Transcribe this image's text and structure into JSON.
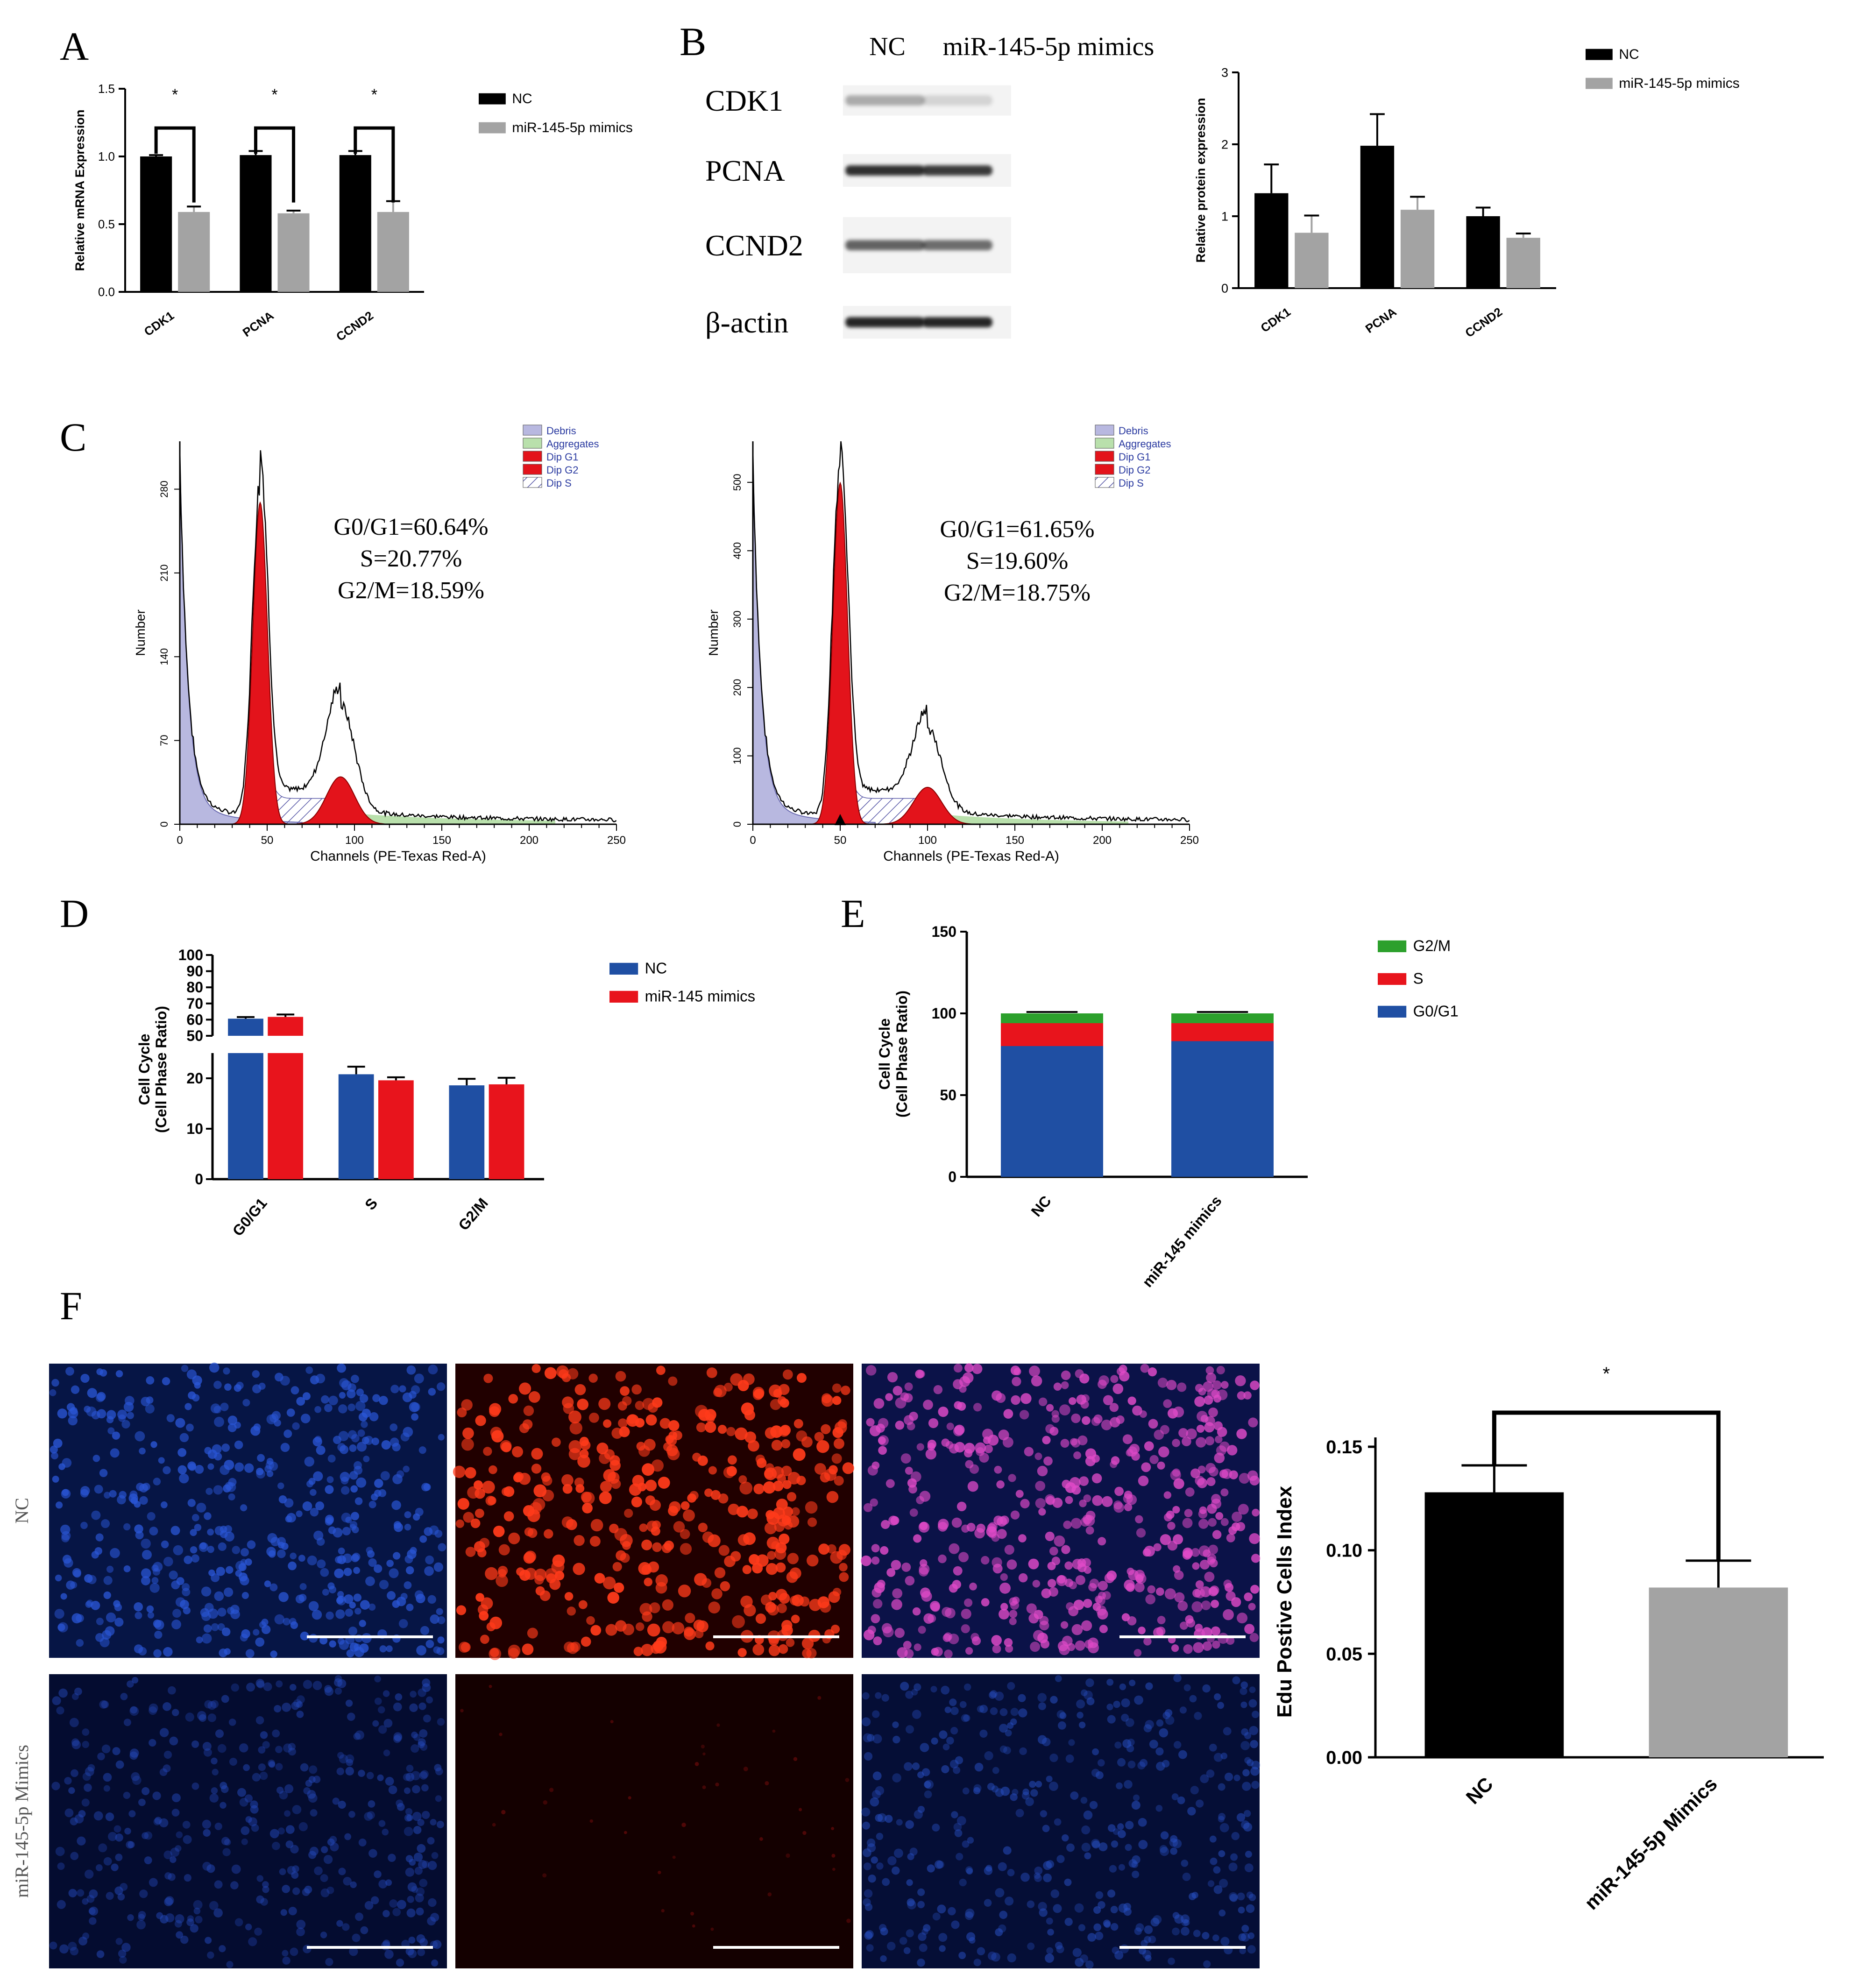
{
  "panel_labels": {
    "A": "A",
    "B": "B",
    "C": "C",
    "D": "D",
    "E": "E",
    "F": "F"
  },
  "colors": {
    "black": "#000000",
    "grey": "#a3a3a3",
    "blue": "#1f4fa3",
    "red": "#e8141c",
    "green": "#2ca02c",
    "debris": "#b8b8e0",
    "aggregates": "#b9e0ac",
    "dip": "#e3131b"
  },
  "blot": {
    "lane_labels": [
      "NC",
      "miR-145-5p mimics"
    ],
    "rows": [
      {
        "label": "CDK1",
        "intensity": [
          0.35,
          0.15
        ]
      },
      {
        "label": "PCNA",
        "intensity": [
          0.95,
          0.9
        ]
      },
      {
        "label": "CCND2",
        "intensity": [
          0.7,
          0.65
        ]
      },
      {
        "label": "β-actin",
        "intensity": [
          1.0,
          1.0
        ]
      }
    ]
  },
  "flow": [
    {
      "ylabel": "Number",
      "xlabel": "Channels (PE-Texas Red-A)",
      "yticks": [
        0,
        70,
        140,
        210,
        280
      ],
      "xticks": [
        0,
        50,
        100,
        150,
        200,
        250
      ],
      "stats": [
        "G0/G1=60.64%",
        "S=20.77%",
        "G2/M=18.59%"
      ],
      "legend": [
        "Debris",
        "Aggregates",
        "Dip G1",
        "Dip G2",
        "Dip S"
      ],
      "ymax": 320,
      "g1_peak": [
        46,
        280
      ],
      "g2_peak": [
        92,
        88
      ]
    },
    {
      "ylabel": "Number",
      "xlabel": "Channels (PE-Texas Red-A)",
      "yticks": [
        0,
        100,
        200,
        300,
        400,
        500
      ],
      "xticks": [
        0,
        50,
        100,
        150,
        200,
        250
      ],
      "stats": [
        "G0/G1=61.65%",
        "S=19.60%",
        "G2/M=18.75%"
      ],
      "legend": [
        "Debris",
        "Aggregates",
        "Dip G1",
        "Dip G2",
        "Dip S"
      ],
      "ymax": 560,
      "g1_peak": [
        50,
        520
      ],
      "g2_peak": [
        100,
        120
      ]
    }
  ],
  "micro": {
    "row_labels": [
      "NC",
      "miR-145-5p Mimics"
    ]
  },
  "chart_data": [
    {
      "panel": "A",
      "type": "bar",
      "ylabel": "Relative mRNA Expression",
      "ylim": [
        0,
        1.5
      ],
      "yticks": [
        0.0,
        0.5,
        1.0,
        1.5
      ],
      "categories": [
        "CDK1",
        "PCNA",
        "CCND2"
      ],
      "series": [
        {
          "name": "NC",
          "values": [
            1.0,
            1.01,
            1.01
          ],
          "errors": [
            0.01,
            0.03,
            0.03
          ]
        },
        {
          "name": "miR-145-5p mimics",
          "values": [
            0.59,
            0.58,
            0.59
          ],
          "errors": [
            0.04,
            0.02,
            0.08
          ]
        }
      ],
      "significance": [
        "*",
        "*",
        "*"
      ],
      "legend_position": "right"
    },
    {
      "panel": "B",
      "type": "bar",
      "ylabel": "Relative protein expression",
      "ylim": [
        0,
        3
      ],
      "yticks": [
        0,
        1,
        2,
        3
      ],
      "categories": [
        "CDK1",
        "PCNA",
        "CCND2"
      ],
      "series": [
        {
          "name": "NC",
          "values": [
            1.32,
            1.98,
            1.0
          ],
          "errors": [
            0.4,
            0.44,
            0.12
          ]
        },
        {
          "name": "miR-145-5p mimics",
          "values": [
            0.77,
            1.09,
            0.7
          ],
          "errors": [
            0.24,
            0.18,
            0.06
          ]
        }
      ],
      "legend_position": "top-right"
    },
    {
      "panel": "D",
      "type": "bar",
      "ylabel": "Cell Cycle (Cell Phase Ratio)",
      "ylim": [
        0,
        100
      ],
      "axis_break": [
        25,
        50
      ],
      "yticks": [
        0,
        10,
        20,
        50,
        60,
        70,
        80,
        90,
        100
      ],
      "categories": [
        "G0/G1",
        "S",
        "G2/M"
      ],
      "series": [
        {
          "name": "NC",
          "values": [
            60.6,
            20.8,
            18.6
          ],
          "errors": [
            1.0,
            1.5,
            1.3
          ]
        },
        {
          "name": "miR-145 mimics",
          "values": [
            61.7,
            19.6,
            18.8
          ],
          "errors": [
            1.5,
            0.6,
            1.3
          ]
        }
      ],
      "legend_position": "right"
    },
    {
      "panel": "E",
      "type": "bar",
      "stacked": true,
      "ylabel": "Cell Cycle (Cell Phase Ratio)",
      "ylim": [
        0,
        150
      ],
      "yticks": [
        0,
        50,
        100,
        150
      ],
      "categories": [
        "NC",
        "miR-145 mimics"
      ],
      "series": [
        {
          "name": "G0/G1",
          "values": [
            80,
            83
          ]
        },
        {
          "name": "S",
          "values": [
            14,
            11
          ]
        },
        {
          "name": "G2/M",
          "values": [
            6,
            6
          ]
        }
      ],
      "legend_position": "right"
    },
    {
      "panel": "F",
      "type": "bar",
      "ylabel": "Edu Postive Cells Index",
      "ylim": [
        0,
        0.15
      ],
      "yticks": [
        0.0,
        0.05,
        0.1,
        0.15
      ],
      "ytick_labels": [
        "0.00",
        "0.05",
        "0.10",
        "0.15"
      ],
      "categories": [
        "NC",
        "miR-145-5p Mimics"
      ],
      "values": [
        0.128,
        0.082
      ],
      "errors": [
        0.013,
        0.013
      ],
      "significance": "*"
    }
  ]
}
